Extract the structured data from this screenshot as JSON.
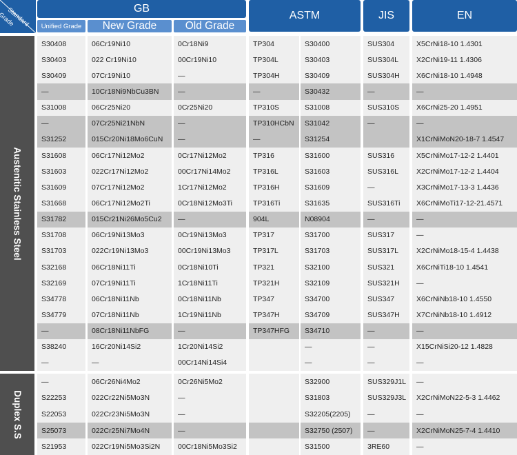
{
  "header": {
    "corner": {
      "top": "Standard",
      "bottom": "Grade"
    },
    "gb": "GB",
    "astm": "ASTM",
    "jis": "JIS",
    "en": "EN",
    "unified": "Unified Grade",
    "new_grade": "New Grade",
    "old_grade": "Old Grade"
  },
  "groups": [
    {
      "label": "Austenitic Stainless Steel"
    },
    {
      "label": "Duplex S.S"
    }
  ],
  "rows": [
    {
      "shaded": false,
      "cells": [
        "S30408",
        "06Cr19Ni10",
        "0Cr18Ni9",
        "TP304",
        "S30400",
        "SUS304",
        "X5CrNi18-10 1.4301"
      ]
    },
    {
      "shaded": false,
      "cells": [
        "S30403",
        "022 Cr19Ni10",
        "00Cr19Ni10",
        "TP304L",
        "S30403",
        "SUS304L",
        "X2CrNi19-11 1.4306"
      ]
    },
    {
      "shaded": false,
      "cells": [
        "S30409",
        "07Cr19Ni10",
        "—",
        "TP304H",
        "S30409",
        "SUS304H",
        "X6CrNi18-10 1.4948"
      ]
    },
    {
      "shaded": true,
      "cells": [
        "—",
        "10Cr18Ni9NbCu3BN",
        "—",
        "—",
        "S30432",
        "—",
        "—"
      ]
    },
    {
      "shaded": false,
      "cells": [
        "S31008",
        "06Cr25Ni20",
        "0Cr25Ni20",
        "TP310S",
        "S31008",
        "SUS310S",
        "X6CrNi25-20 1.4951"
      ]
    },
    {
      "shaded": true,
      "cells": [
        "—",
        "07Cr25Ni21NbN",
        "—",
        "TP310HCbN",
        "S31042",
        "—",
        "—"
      ]
    },
    {
      "shaded": true,
      "cells": [
        "S31252",
        "015Cr20Ni18Mo6CuN",
        "—",
        "—",
        "S31254",
        "",
        "X1CrNiMoN20-18-7 1.4547"
      ]
    },
    {
      "shaded": false,
      "cells": [
        "S31608",
        "06Cr17Ni12Mo2",
        "0Cr17Ni12Mo2",
        "TP316",
        "S31600",
        "SUS316",
        "X5CrNiMo17-12-2 1.4401"
      ]
    },
    {
      "shaded": false,
      "cells": [
        "S31603",
        "022Cr17Ni12Mo2",
        "00Cr17Ni14Mo2",
        "TP316L",
        "S31603",
        "SUS316L",
        "X2CrNiMo17-12-2 1.4404"
      ]
    },
    {
      "shaded": false,
      "cells": [
        "S31609",
        "07Cr17Ni12Mo2",
        "1Cr17Ni12Mo2",
        "TP316H",
        "S31609",
        "—",
        "X3CrNiMo17-13-3 1.4436"
      ]
    },
    {
      "shaded": false,
      "cells": [
        "S31668",
        "06Cr17Ni12Mo2Ti",
        "0Cr18Ni12Mo3Ti",
        "TP316Ti",
        "S31635",
        "SUS316Ti",
        "X6CrNiMoTi17-12-21.4571"
      ]
    },
    {
      "shaded": true,
      "cells": [
        "S31782",
        "015Cr21Ni26Mo5Cu2",
        "—",
        "904L",
        "N08904",
        "—",
        "—"
      ]
    },
    {
      "shaded": false,
      "cells": [
        "S31708",
        "06Cr19Ni13Mo3",
        "0Cr19Ni13Mo3",
        "TP317",
        "S31700",
        "SUS317",
        "—"
      ]
    },
    {
      "shaded": false,
      "cells": [
        "S31703",
        "022Cr19Ni13Mo3",
        "00Cr19Ni13Mo3",
        "TP317L",
        "S31703",
        "SUS317L",
        "X2CrNiMo18-15-4 1.4438"
      ]
    },
    {
      "shaded": false,
      "cells": [
        "S32168",
        "06Cr18Ni11Ti",
        "0Cr18Ni10Ti",
        "TP321",
        "S32100",
        "SUS321",
        "X6CrNiTi18-10 1.4541"
      ]
    },
    {
      "shaded": false,
      "cells": [
        "S32169",
        "07Cr19Ni11Ti",
        "1Cr18Ni11Ti",
        "TP321H",
        "S32109",
        "SUS321H",
        "—"
      ]
    },
    {
      "shaded": false,
      "cells": [
        "S34778",
        "06Cr18Ni11Nb",
        "0Cr18Ni11Nb",
        "TP347",
        "S34700",
        "SUS347",
        "X6CrNiNb18-10 1.4550"
      ]
    },
    {
      "shaded": false,
      "cells": [
        "S34779",
        "07Cr18Ni11Nb",
        "1Cr19Ni11Nb",
        "TP347H",
        "S34709",
        "SUS347H",
        "X7CrNiNb18-10 1.4912"
      ]
    },
    {
      "shaded": true,
      "cells": [
        "—",
        "08Cr18Ni11NbFG",
        "—",
        "TP347HFG",
        "S34710",
        "—",
        "—"
      ]
    },
    {
      "shaded": false,
      "cells": [
        "S38240",
        "16Cr20Ni14Si2",
        "1Cr20Ni14Si2",
        "",
        "—",
        "—",
        "X15CrNiSi20-12 1.4828"
      ]
    },
    {
      "shaded": false,
      "cells": [
        "—",
        "—",
        "00Cr14Ni14Si4",
        "",
        "—",
        "—",
        "—"
      ]
    },
    {
      "shaded": false,
      "cells": [
        "—",
        "06Cr26Ni4Mo2",
        "0Cr26Ni5Mo2",
        "",
        "S32900",
        "SUS329J1L",
        "—"
      ]
    },
    {
      "shaded": false,
      "cells": [
        "S22253",
        "022Cr22Ni5Mo3N",
        "—",
        "",
        "S31803",
        "SUS329J3L",
        "X2CrNiMoN22-5-3 1.4462"
      ]
    },
    {
      "shaded": false,
      "cells": [
        "S22053",
        "022Cr23Ni5Mo3N",
        "—",
        "",
        "S32205(2205)",
        "—",
        "—"
      ]
    },
    {
      "shaded": true,
      "cells": [
        "S25073",
        "022Cr25Ni7Mo4N",
        "—",
        "",
        "S32750 (2507)",
        "—",
        "X2CrNiMoN25-7-4 1.4410"
      ]
    },
    {
      "shaded": false,
      "cells": [
        "S21953",
        "022Cr19Ni5Mo3Si2N",
        "00Cr18Ni5Mo3Si2",
        "",
        "S31500",
        "3RE60",
        "—"
      ]
    }
  ]
}
